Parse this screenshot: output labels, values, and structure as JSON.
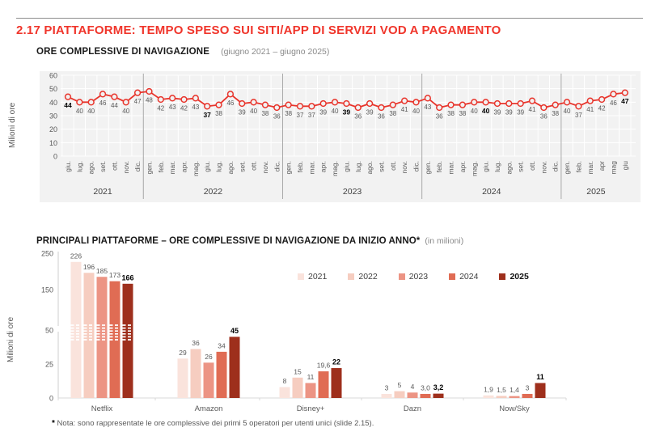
{
  "page": {
    "title": "2.17 PIATTAFORME: TEMPO SPESO SUI SITI/APP DI SERVIZI VOD A PAGAMENTO",
    "title_color": "#f0352b"
  },
  "line_section": {
    "heading": "ORE COMPLESSIVE DI NAVIGAZIONE",
    "period": "(giugno 2021 – giugno 2025)",
    "ylabel": "Milioni di ore"
  },
  "bar_section": {
    "heading": "PRINCIPALI PIATTAFORME – ORE COMPLESSIVE DI NAVIGAZIONE DA INIZIO ANNO*",
    "unit": "(in milioni)",
    "ylabel": "Milioni di ore"
  },
  "note": {
    "marker": "*",
    "text": "Nota: sono rappresentate le ore complessive dei primi 5 operatori per utenti unici (slide 2.15)."
  },
  "chart_data": [
    {
      "type": "line",
      "title": "ORE COMPLESSIVE DI NAVIGAZIONE",
      "subtitle": "(giugno 2021 – giugno 2025)",
      "ylabel": "Milioni di ore",
      "ylim": [
        0,
        60
      ],
      "yticks": [
        0,
        10,
        20,
        30,
        40,
        50,
        60
      ],
      "line_color": "#e8352c",
      "marker": "open-circle",
      "grid": true,
      "bold_point_indices": [
        0,
        12,
        24,
        36,
        48
      ],
      "years": [
        {
          "year": "2021",
          "months": [
            "giu.",
            "lug.",
            "ago.",
            "set.",
            "ott.",
            "nov.",
            "dic."
          ],
          "values": [
            44,
            40,
            40,
            46,
            44,
            40,
            47
          ]
        },
        {
          "year": "2022",
          "months": [
            "gen.",
            "feb.",
            "mar.",
            "apr.",
            "mag.",
            "giu.",
            "lug.",
            "ago.",
            "set.",
            "ott.",
            "nov.",
            "dic."
          ],
          "values": [
            48,
            42,
            43,
            42,
            43,
            37,
            38,
            46,
            39,
            40,
            38,
            36
          ]
        },
        {
          "year": "2023",
          "months": [
            "gen.",
            "feb.",
            "mar.",
            "apr.",
            "mag.",
            "giu.",
            "lug.",
            "ago.",
            "set.",
            "ott.",
            "nov.",
            "dic."
          ],
          "values": [
            38,
            37,
            37,
            39,
            40,
            39,
            36,
            39,
            36,
            38,
            41,
            40
          ]
        },
        {
          "year": "2024",
          "months": [
            "gen.",
            "feb.",
            "mar.",
            "apr.",
            "mag.",
            "giu.",
            "lug.",
            "ago.",
            "set.",
            "ott.",
            "nov.",
            "dic."
          ],
          "values": [
            43,
            36,
            38,
            38,
            40,
            40,
            39,
            39,
            39,
            41,
            36,
            38
          ]
        },
        {
          "year": "2025",
          "months": [
            "gen.",
            "feb.",
            "mar.",
            "apr",
            "mag",
            "giu"
          ],
          "values": [
            40,
            37,
            41,
            42,
            46,
            47
          ]
        }
      ]
    },
    {
      "type": "bar",
      "title": "PRINCIPALI PIATTAFORME – ORE COMPLESSIVE DI NAVIGAZIONE DA INIZIO ANNO* (in milioni)",
      "ylabel": "Milioni di ore",
      "yticks": [
        0,
        25,
        50,
        150,
        250
      ],
      "axis_break_between": [
        50,
        150
      ],
      "legend_position": "right-center",
      "categories": [
        "Netflix",
        "Amazon",
        "Disney+",
        "Dazn",
        "Now/Sky"
      ],
      "series": [
        {
          "name": "2021",
          "color": "#fae3dc",
          "values": [
            226,
            29,
            8,
            3,
            1.9
          ],
          "labels": [
            "226",
            "29",
            "8",
            "3",
            "1,9"
          ]
        },
        {
          "name": "2022",
          "color": "#f6cdc0",
          "values": [
            196,
            36,
            15,
            5,
            1.5
          ],
          "labels": [
            "196",
            "36",
            "15",
            "5",
            "1,5"
          ]
        },
        {
          "name": "2023",
          "color": "#ec9484",
          "values": [
            185,
            26,
            11,
            4,
            1.4
          ],
          "labels": [
            "185",
            "26",
            "11",
            "4",
            "1,4"
          ]
        },
        {
          "name": "2024",
          "color": "#e06c54",
          "values": [
            173,
            34,
            19.6,
            3.0,
            3
          ],
          "labels": [
            "173",
            "34",
            "19,6",
            "3,0",
            "3"
          ]
        },
        {
          "name": "2025",
          "color": "#9e2f1c",
          "values": [
            166,
            45,
            22,
            3.2,
            11
          ],
          "labels": [
            "166",
            "45",
            "22",
            "3,2",
            "11"
          ],
          "bold": true
        }
      ]
    }
  ]
}
